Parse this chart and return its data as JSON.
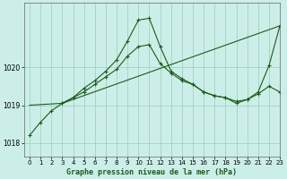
{
  "title": "Graphe pression niveau de la mer (hPa)",
  "bg_color": "#cceee8",
  "grid_color": "#99ccbb",
  "line_color": "#1a5c1a",
  "xlim": [
    -0.5,
    23
  ],
  "ylim": [
    1017.65,
    1021.7
  ],
  "yticks": [
    1018,
    1019,
    1020
  ],
  "xticks": [
    0,
    1,
    2,
    3,
    4,
    5,
    6,
    7,
    8,
    9,
    10,
    11,
    12,
    13,
    14,
    15,
    16,
    17,
    18,
    19,
    20,
    21,
    22,
    23
  ],
  "series1_straight": {
    "x": [
      0,
      3,
      23
    ],
    "y": [
      1019.0,
      1019.05,
      1021.1
    ]
  },
  "series2_wavy": {
    "x": [
      3,
      4,
      5,
      6,
      7,
      8,
      9,
      10,
      11,
      12,
      13,
      14,
      15,
      16,
      17,
      18,
      19,
      20,
      21,
      22,
      23
    ],
    "y": [
      1019.05,
      1019.2,
      1019.35,
      1019.55,
      1019.75,
      1019.95,
      1020.3,
      1020.55,
      1020.6,
      1020.1,
      1019.85,
      1019.65,
      1019.55,
      1019.35,
      1019.25,
      1019.2,
      1019.05,
      1019.15,
      1019.3,
      1019.5,
      1019.35
    ]
  },
  "series3_peaked": {
    "x": [
      0,
      1,
      2,
      3,
      4,
      5,
      6,
      7,
      8,
      9,
      10,
      11,
      12,
      13,
      14,
      15,
      16,
      17,
      18,
      19,
      20,
      21,
      22,
      23
    ],
    "y": [
      1018.2,
      1018.55,
      1018.85,
      1019.05,
      1019.2,
      1019.45,
      1019.65,
      1019.9,
      1020.2,
      1020.7,
      1021.25,
      1021.3,
      1020.55,
      1019.9,
      1019.7,
      1019.55,
      1019.35,
      1019.25,
      1019.2,
      1019.1,
      1019.15,
      1019.35,
      1020.05,
      1021.1
    ]
  }
}
